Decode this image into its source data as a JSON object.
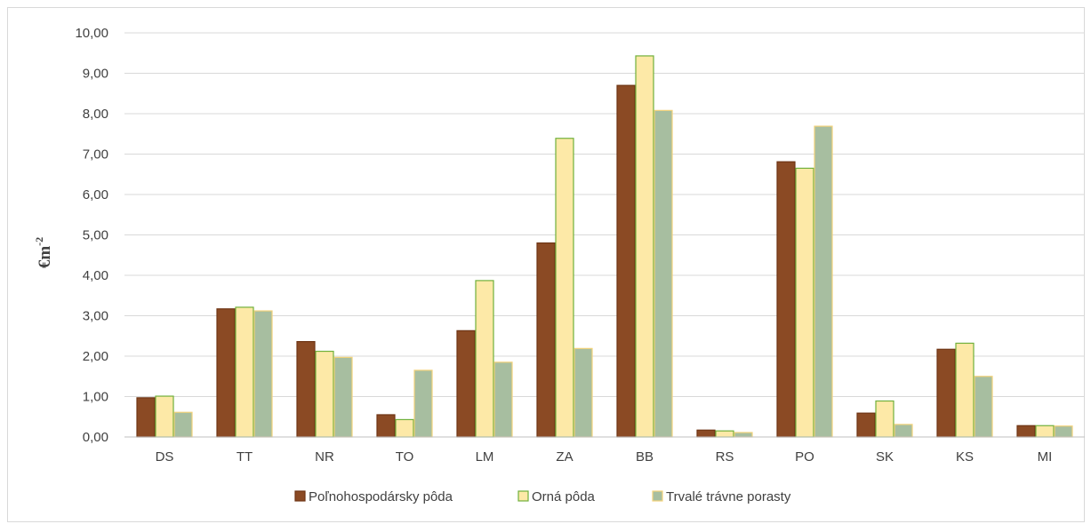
{
  "chart_data": {
    "type": "bar",
    "categories": [
      "DS",
      "TT",
      "NR",
      "TO",
      "LM",
      "ZA",
      "BB",
      "RS",
      "PO",
      "SK",
      "KS",
      "MI"
    ],
    "series": [
      {
        "name": "Poľnohospodársky pôda",
        "values": [
          0.97,
          3.17,
          2.36,
          0.55,
          2.63,
          4.8,
          8.7,
          0.17,
          6.81,
          0.59,
          2.17,
          0.28
        ],
        "fill": "#8b4a24",
        "stroke": "#6e3515"
      },
      {
        "name": "Orná pôda",
        "values": [
          1.01,
          3.21,
          2.12,
          0.43,
          3.87,
          7.39,
          9.43,
          0.15,
          6.65,
          0.89,
          2.32,
          0.28
        ],
        "fill": "#fde9a7",
        "stroke": "#70b03b"
      },
      {
        "name": "Trvalé trávne porasty",
        "values": [
          0.61,
          3.12,
          1.97,
          1.65,
          1.85,
          2.19,
          8.08,
          0.11,
          7.69,
          0.31,
          1.5,
          0.27
        ],
        "fill": "#a7bea0",
        "stroke": "#f2d27a"
      }
    ],
    "ylabel": "€m",
    "ylabel_sup": "-2",
    "ylim": [
      0,
      10
    ],
    "yticks": [
      "0,00",
      "1,00",
      "2,00",
      "3,00",
      "4,00",
      "5,00",
      "6,00",
      "7,00",
      "8,00",
      "9,00",
      "10,00"
    ],
    "grid": true,
    "legend_position": "bottom"
  }
}
